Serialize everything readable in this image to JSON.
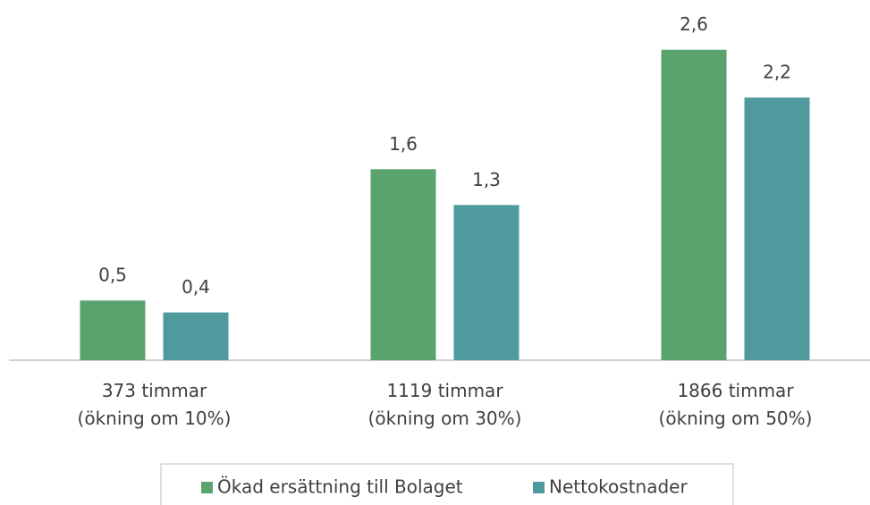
{
  "chart_data": {
    "type": "bar",
    "categories": [
      "373 timmar\n(ökning om 10%)",
      "1119 timmar\n(ökning om 30%)",
      "1866 timmar\n(ökning om 50%)"
    ],
    "series": [
      {
        "name": "Ökad ersättning till Bolaget",
        "color": "#5ba36e",
        "values": [
          0.5,
          1.6,
          2.6
        ],
        "value_labels": [
          "0,5",
          "1,6",
          "2,6"
        ]
      },
      {
        "name": "Nettokostnader",
        "color": "#4f9a9c",
        "values": [
          0.4,
          1.3,
          2.2
        ],
        "value_labels": [
          "0,4",
          "1,3",
          "2,2"
        ]
      }
    ],
    "ylim": [
      0,
      2.8
    ]
  }
}
